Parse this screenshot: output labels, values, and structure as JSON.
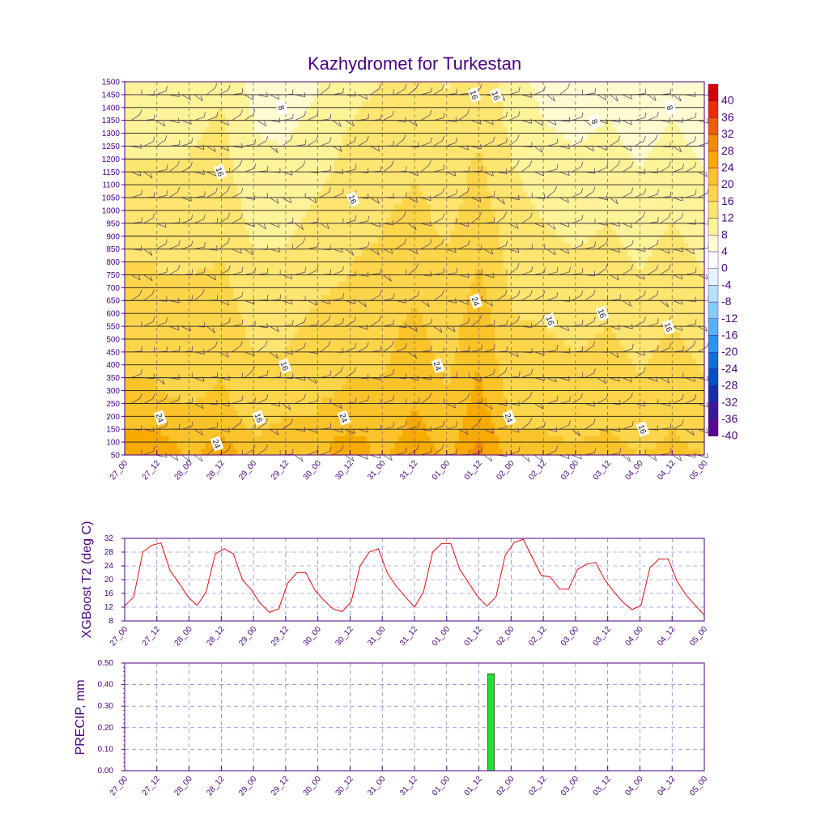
{
  "chart_data": [
    {
      "type": "heatmap",
      "subtype": "time-height contour with wind barbs",
      "title": "Kazhydromet for Turkestan",
      "y_ticks": [
        50,
        100,
        150,
        200,
        250,
        300,
        350,
        400,
        450,
        500,
        550,
        600,
        650,
        700,
        750,
        800,
        850,
        900,
        950,
        1000,
        1050,
        1100,
        1150,
        1200,
        1250,
        1300,
        1350,
        1400,
        1450,
        1500
      ],
      "ylim": [
        50,
        1500
      ],
      "x_ticks": [
        "27_00",
        "27_12",
        "28_00",
        "28_12",
        "29_00",
        "29_12",
        "30_00",
        "30_12",
        "31_00",
        "31_12",
        "01_00",
        "01_12",
        "02_00",
        "02_12",
        "03_00",
        "03_12",
        "04_00",
        "04_12",
        "05_00"
      ],
      "colorbar": {
        "levels": [
          "40",
          "36",
          "32",
          "28",
          "24",
          "20",
          "16",
          "12",
          "8",
          "4",
          "0",
          "-4",
          "-8",
          "-12",
          "-16",
          "-20",
          "-24",
          "-28",
          "-32",
          "-36",
          "-40"
        ],
        "colors": [
          "#d40000",
          "#ee2a00",
          "#f05a00",
          "#f58800",
          "#f9aa00",
          "#fbc32a",
          "#fdd54a",
          "#fee570",
          "#fff39a",
          "#fffbd0",
          "#ffffff",
          "#e6f5fd",
          "#b7e3fa",
          "#86cdf6",
          "#55b4f0",
          "#2a94e6",
          "#0f6fd8",
          "#0050c8",
          "#1a2ea8",
          "#3a1a90",
          "#5a0a88"
        ]
      },
      "contour_labels": [
        {
          "text": "8"
        },
        {
          "text": "16"
        },
        {
          "text": "16"
        },
        {
          "text": "16"
        },
        {
          "text": "16"
        },
        {
          "text": "8"
        },
        {
          "text": "8"
        },
        {
          "text": "24"
        },
        {
          "text": "16"
        },
        {
          "text": "16"
        },
        {
          "text": "16"
        },
        {
          "text": "24"
        },
        {
          "text": "24"
        },
        {
          "text": "24"
        },
        {
          "text": "24"
        },
        {
          "text": "24"
        },
        {
          "text": "16"
        },
        {
          "text": "16"
        },
        {
          "text": "16"
        },
        {
          "text": "24"
        },
        {
          "text": "16"
        }
      ],
      "temperature_profiles": [
        [
          26.5,
          25.5,
          24,
          22,
          21,
          21,
          20,
          20,
          19,
          19,
          18,
          18,
          17,
          17,
          16,
          16,
          15,
          15,
          14,
          14,
          13,
          13,
          12,
          12,
          12,
          11,
          11,
          11,
          10,
          10
        ],
        [
          27.5,
          26,
          24,
          22,
          21,
          20,
          20,
          19,
          19,
          18,
          18,
          18,
          17,
          17,
          16,
          16,
          15,
          15,
          14,
          14,
          13,
          13,
          12,
          12,
          11,
          11,
          11,
          10,
          10,
          10
        ],
        [
          23,
          22,
          21,
          20,
          20,
          19,
          19,
          18,
          18,
          18,
          17,
          17,
          16,
          16,
          16,
          15,
          15,
          14,
          14,
          14,
          13,
          13,
          13,
          12,
          12,
          11,
          11,
          11,
          10,
          10
        ],
        [
          27,
          25,
          23.5,
          22,
          21,
          20.5,
          20,
          19.5,
          19,
          18.5,
          18,
          18,
          17.5,
          17,
          17,
          16,
          16,
          15.5,
          15,
          15,
          14.5,
          14,
          14,
          13.5,
          13,
          13,
          12.5,
          12,
          12,
          11.5
        ],
        [
          21.5,
          20.5,
          19.5,
          18.5,
          18,
          17.5,
          17,
          16.5,
          16,
          15.5,
          15,
          14.5,
          14,
          13.5,
          13,
          12.5,
          12,
          11.5,
          11,
          10.5,
          10,
          9.5,
          9,
          9,
          8.5,
          8,
          8,
          7.5,
          7,
          7
        ],
        [
          22,
          21,
          21,
          20,
          19,
          18,
          17,
          16.5,
          16,
          15.5,
          15,
          14.5,
          14,
          13.5,
          13,
          12.5,
          12,
          11.5,
          11,
          10.5,
          10,
          9.5,
          9,
          8.5,
          8,
          7.5,
          7,
          6.5,
          6,
          5.5
        ],
        [
          23,
          22,
          21,
          20,
          20,
          19,
          19,
          18,
          18,
          17.5,
          17,
          16.5,
          16,
          15.5,
          15,
          14.5,
          14,
          13.5,
          13,
          12.5,
          12,
          11.5,
          11,
          10.5,
          10,
          9.5,
          9,
          8.5,
          8,
          8
        ],
        [
          26,
          26.5,
          24,
          22.5,
          21.5,
          20.5,
          20,
          19.5,
          19,
          18.5,
          18,
          17.5,
          17,
          16.5,
          16,
          16,
          15.5,
          15,
          15,
          14.5,
          14,
          14,
          13.5,
          13,
          13,
          12.5,
          12,
          11.5,
          11,
          11
        ],
        [
          23,
          22,
          21,
          21,
          20,
          20,
          20,
          19.5,
          19,
          19,
          18.5,
          18,
          18,
          17.5,
          17,
          17,
          16.5,
          16,
          16,
          15.5,
          15,
          15,
          14.5,
          14,
          14,
          13.5,
          13,
          13,
          12.5,
          12
        ],
        [
          28,
          26.5,
          25.5,
          24.5,
          24,
          23.5,
          23,
          22.5,
          22,
          21.5,
          21,
          20.5,
          20,
          19.5,
          19,
          18.5,
          18,
          17.5,
          17,
          17,
          16.5,
          16,
          16,
          15.5,
          15,
          15,
          14.5,
          14,
          14,
          13.5
        ],
        [
          23,
          22,
          21.5,
          21,
          20.5,
          20,
          19.5,
          19,
          18.5,
          18,
          18,
          17.5,
          17,
          17,
          16.5,
          16,
          16,
          15.5,
          15,
          15,
          14.5,
          14,
          14,
          13.5,
          13,
          13,
          12.5,
          12,
          12,
          11.5
        ],
        [
          29.5,
          28.5,
          27.5,
          26.5,
          25.5,
          25,
          24.5,
          24,
          23.5,
          23,
          22.5,
          22,
          21.5,
          21,
          20.5,
          20,
          19.5,
          19,
          18.5,
          18,
          17.5,
          17,
          17,
          16.5,
          16,
          16,
          15.5,
          15,
          15,
          15
        ],
        [
          22,
          21,
          20,
          19.5,
          19,
          18.5,
          18,
          17.5,
          17,
          17,
          16.5,
          16,
          16,
          15.5,
          15,
          15,
          14.5,
          14,
          14,
          13.5,
          13,
          13,
          12.5,
          12,
          12,
          11.5,
          11,
          11,
          10.5,
          10
        ],
        [
          21.5,
          20.5,
          20,
          19.5,
          19,
          18.5,
          18,
          17.5,
          17,
          16.5,
          16,
          15.5,
          15,
          14.5,
          14,
          13.5,
          13,
          12.5,
          12,
          11.5,
          11,
          10.5,
          10,
          9.5,
          9,
          8.5,
          8,
          7.5,
          7,
          7
        ],
        [
          21,
          20,
          19,
          18.5,
          18,
          17.5,
          17,
          16.5,
          16,
          15.5,
          15,
          14.5,
          14,
          13.5,
          13,
          12.5,
          12,
          11.5,
          11,
          10.5,
          10,
          9.5,
          9,
          8.5,
          8,
          7.5,
          7,
          6.5,
          6,
          6
        ],
        [
          22,
          21,
          20,
          19.5,
          19,
          18.5,
          18,
          17.5,
          17,
          16.5,
          16,
          15.5,
          15,
          14.5,
          14,
          13.5,
          13,
          12.5,
          12,
          11.5,
          11,
          10.5,
          10,
          9.5,
          9,
          8.5,
          8,
          7.5,
          7,
          7
        ],
        [
          20,
          19,
          18,
          17.5,
          17,
          16.5,
          16,
          15.5,
          15,
          14.5,
          14,
          13.5,
          13,
          12.5,
          12,
          11.5,
          11,
          10.5,
          10,
          9.5,
          9,
          8.5,
          8,
          7.5,
          7,
          6.5,
          6,
          5.5,
          5,
          5
        ],
        [
          21.5,
          20.5,
          20,
          19.5,
          19,
          18.5,
          18,
          17.5,
          17,
          16.5,
          16,
          15.5,
          15,
          14.5,
          14,
          13.5,
          13,
          12.5,
          12,
          11.5,
          11,
          10.5,
          10,
          9.5,
          9,
          8.5,
          8,
          7.5,
          7,
          7
        ],
        [
          20,
          19,
          18,
          17.5,
          17,
          16.5,
          16,
          15.5,
          15,
          14.5,
          14,
          13.5,
          13,
          12.5,
          12,
          11.5,
          11,
          10.5,
          10,
          9.5,
          9,
          8.5,
          8,
          7.5,
          7,
          6.5,
          6,
          5.5,
          5,
          5
        ]
      ]
    },
    {
      "type": "line",
      "ylabel": "XGBoost T2 (deg C)",
      "ylim": [
        8,
        32
      ],
      "y_ticks": [
        8,
        12,
        16,
        20,
        24,
        28,
        32
      ],
      "x_ticks": [
        "27_00",
        "27_12",
        "28_00",
        "28_12",
        "29_00",
        "29_12",
        "30_00",
        "30_12",
        "31_00",
        "31_12",
        "01_00",
        "01_12",
        "02_00",
        "02_12",
        "03_00",
        "03_12",
        "04_00",
        "04_12",
        "05_00"
      ],
      "x_hours": [
        0,
        3,
        6,
        9,
        12,
        15,
        18,
        21,
        24,
        27,
        30,
        33,
        36,
        39,
        42,
        45,
        48,
        51,
        54,
        57,
        60,
        63,
        66,
        69,
        72,
        75,
        78,
        81,
        84,
        87,
        90,
        93,
        96,
        99,
        102,
        105,
        108,
        111,
        114,
        117,
        120,
        123,
        126,
        129,
        132,
        135,
        138,
        141,
        144,
        147,
        150,
        153,
        156,
        159,
        162,
        165,
        168,
        171,
        174,
        177,
        180,
        183,
        186,
        189,
        192
      ],
      "values": [
        12.3,
        15,
        28,
        30,
        30.7,
        22.7,
        19,
        15,
        12.5,
        16.5,
        27.5,
        29,
        27.5,
        20,
        17,
        13,
        10.5,
        11.5,
        19,
        22,
        22,
        17,
        14,
        11.5,
        10.7,
        13.5,
        24,
        28,
        29,
        22,
        18,
        15,
        12,
        16.5,
        28,
        30.5,
        30.5,
        23,
        19,
        15,
        12.3,
        15,
        27,
        30.8,
        31.7,
        26.5,
        21.2,
        20.8,
        17.3,
        17.2,
        23,
        24.5,
        25,
        20,
        16.5,
        13.5,
        11.3,
        12.5,
        23.5,
        26,
        26,
        19.5,
        15.5,
        12.5,
        9.7
      ]
    },
    {
      "type": "bar",
      "ylabel": "PRECIP, mm",
      "ylim": [
        0,
        0.5
      ],
      "y_ticks": [
        "0.00",
        "0.10",
        "0.20",
        "0.30",
        "0.40",
        "0.50"
      ],
      "x_ticks": [
        "27_00",
        "27_12",
        "28_00",
        "28_12",
        "29_00",
        "29_12",
        "30_00",
        "30_12",
        "31_00",
        "31_12",
        "01_00",
        "01_12",
        "02_00",
        "02_12",
        "03_00",
        "03_12",
        "04_00",
        "04_12",
        "05_00"
      ],
      "bars": [
        {
          "x_hours": 120,
          "value": 0.45
        }
      ],
      "bar_color": "#22e030"
    }
  ]
}
